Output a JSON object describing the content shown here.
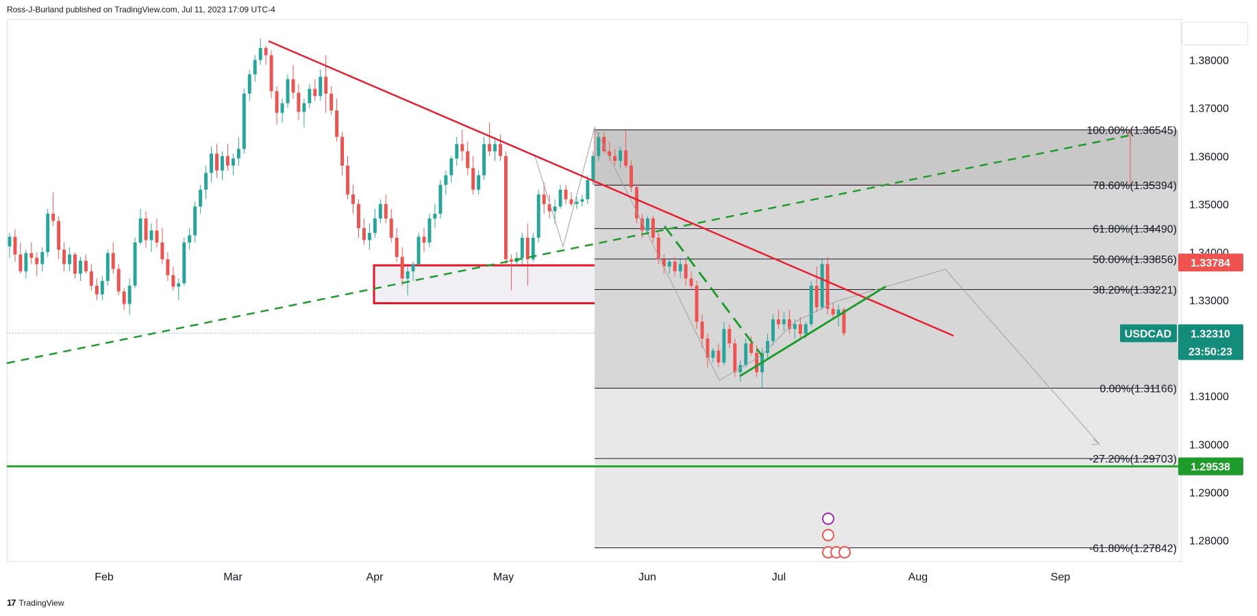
{
  "header": {
    "publisher": "Ross-J-Burland published on TradingView.com, Jul 11, 2023 17:09 UTC-4"
  },
  "footer": {
    "brand": "TradingView",
    "logo_text": "17"
  },
  "colors": {
    "up": "#26a69a",
    "down": "#ef5350",
    "trend_red": "#e81e2e",
    "trend_green": "#1e9b2a",
    "fib_zone": "#c9c9c9",
    "grid": "#e0e3eb"
  },
  "chart_data": {
    "type": "candlestick",
    "symbol": "USDCAD",
    "x_tick_labels": [
      "Feb",
      "Mar",
      "Apr",
      "May",
      "Jun",
      "Jul",
      "Aug",
      "Sep"
    ],
    "y_tick_labels": [
      "1.38000",
      "1.37000",
      "1.36000",
      "1.35000",
      "1.34000",
      "1.33000",
      "1.31000",
      "1.30000",
      "1.29000",
      "1.28000"
    ],
    "ylim": [
      1.2755,
      1.3885
    ],
    "price_tags": [
      {
        "name": "resistance",
        "value": "1.33784",
        "color": "#ef5350"
      },
      {
        "name": "symbol",
        "label": "USDCAD",
        "value": "1.32310",
        "countdown": "23:50:23",
        "color": "#138c7c"
      },
      {
        "name": "support",
        "value": "1.29538",
        "color": "#1e9b2a"
      }
    ],
    "fibonacci": [
      {
        "label": "100.00%(1.36545)",
        "price": 1.36545
      },
      {
        "label": "78.60%(1.35394)",
        "price": 1.35394
      },
      {
        "label": "61.80%(1.34490)",
        "price": 1.3449
      },
      {
        "label": "50.00%(1.33856)",
        "price": 1.33856
      },
      {
        "label": "38.20%(1.33221)",
        "price": 1.33221
      },
      {
        "label": "0.00%(1.31166)",
        "price": 1.31166
      },
      {
        "label": "-27.20%(1.29703)",
        "price": 1.29703
      },
      {
        "label": "-61.80%(1.27842)",
        "price": 1.27842
      }
    ],
    "support_line": 1.29538,
    "last_price": 1.3231,
    "candles": [
      [
        1.3412,
        1.344,
        1.3388,
        1.3432
      ],
      [
        1.3432,
        1.3448,
        1.338,
        1.3395
      ],
      [
        1.3395,
        1.342,
        1.3355,
        1.336
      ],
      [
        1.336,
        1.3405,
        1.3345,
        1.3398
      ],
      [
        1.3398,
        1.342,
        1.3375,
        1.3388
      ],
      [
        1.3388,
        1.34,
        1.335,
        1.3375
      ],
      [
        1.3375,
        1.341,
        1.336,
        1.34
      ],
      [
        1.34,
        1.349,
        1.339,
        1.348
      ],
      [
        1.348,
        1.3525,
        1.3455,
        1.3465
      ],
      [
        1.3465,
        1.3475,
        1.3385,
        1.3405
      ],
      [
        1.3405,
        1.342,
        1.336,
        1.3375
      ],
      [
        1.3375,
        1.341,
        1.336,
        1.3395
      ],
      [
        1.3395,
        1.34,
        1.3345,
        1.3355
      ],
      [
        1.3355,
        1.339,
        1.334,
        1.3382
      ],
      [
        1.3382,
        1.3395,
        1.3355,
        1.336
      ],
      [
        1.336,
        1.3375,
        1.332,
        1.333
      ],
      [
        1.333,
        1.3345,
        1.33,
        1.3312
      ],
      [
        1.3312,
        1.335,
        1.33,
        1.334
      ],
      [
        1.334,
        1.3405,
        1.333,
        1.3398
      ],
      [
        1.3398,
        1.342,
        1.3355,
        1.3365
      ],
      [
        1.3365,
        1.3375,
        1.331,
        1.3318
      ],
      [
        1.3318,
        1.3325,
        1.328,
        1.3292
      ],
      [
        1.3292,
        1.3345,
        1.327,
        1.333
      ],
      [
        1.333,
        1.343,
        1.3325,
        1.342
      ],
      [
        1.342,
        1.349,
        1.3415,
        1.347
      ],
      [
        1.347,
        1.3485,
        1.341,
        1.3425
      ],
      [
        1.3425,
        1.346,
        1.34,
        1.3445
      ],
      [
        1.3445,
        1.347,
        1.341,
        1.342
      ],
      [
        1.342,
        1.345,
        1.3375,
        1.3385
      ],
      [
        1.3385,
        1.34,
        1.334,
        1.3352
      ],
      [
        1.3352,
        1.337,
        1.332,
        1.3328
      ],
      [
        1.3328,
        1.3345,
        1.33,
        1.3335
      ],
      [
        1.3335,
        1.343,
        1.333,
        1.342
      ],
      [
        1.342,
        1.345,
        1.3405,
        1.3435
      ],
      [
        1.3435,
        1.3505,
        1.342,
        1.3495
      ],
      [
        1.3495,
        1.354,
        1.348,
        1.353
      ],
      [
        1.353,
        1.358,
        1.351,
        1.3565
      ],
      [
        1.3565,
        1.362,
        1.3545,
        1.3605
      ],
      [
        1.3605,
        1.3625,
        1.3555,
        1.357
      ],
      [
        1.357,
        1.361,
        1.355,
        1.36
      ],
      [
        1.36,
        1.3625,
        1.357,
        1.358
      ],
      [
        1.358,
        1.3605,
        1.356,
        1.3595
      ],
      [
        1.3595,
        1.364,
        1.358,
        1.3615
      ],
      [
        1.3615,
        1.374,
        1.3605,
        1.373
      ],
      [
        1.373,
        1.378,
        1.3715,
        1.377
      ],
      [
        1.377,
        1.381,
        1.3755,
        1.38
      ],
      [
        1.38,
        1.3845,
        1.379,
        1.3825
      ],
      [
        1.3825,
        1.383,
        1.379,
        1.381
      ],
      [
        1.381,
        1.382,
        1.372,
        1.3735
      ],
      [
        1.3735,
        1.3745,
        1.3665,
        1.369
      ],
      [
        1.369,
        1.372,
        1.367,
        1.371
      ],
      [
        1.371,
        1.377,
        1.37,
        1.376
      ],
      [
        1.376,
        1.379,
        1.372,
        1.3732
      ],
      [
        1.3732,
        1.375,
        1.3675,
        1.3692
      ],
      [
        1.3692,
        1.372,
        1.366,
        1.371
      ],
      [
        1.371,
        1.375,
        1.37,
        1.374
      ],
      [
        1.374,
        1.376,
        1.3715,
        1.3725
      ],
      [
        1.3725,
        1.378,
        1.3715,
        1.3765
      ],
      [
        1.3765,
        1.381,
        1.369,
        1.373
      ],
      [
        1.373,
        1.3745,
        1.3685,
        1.3695
      ],
      [
        1.3695,
        1.372,
        1.363,
        1.364
      ],
      [
        1.364,
        1.365,
        1.356,
        1.358
      ],
      [
        1.358,
        1.36,
        1.351,
        1.352
      ],
      [
        1.352,
        1.354,
        1.348,
        1.35
      ],
      [
        1.35,
        1.351,
        1.343,
        1.345
      ],
      [
        1.345,
        1.347,
        1.3415,
        1.3425
      ],
      [
        1.3425,
        1.346,
        1.3405,
        1.344
      ],
      [
        1.344,
        1.349,
        1.343,
        1.347
      ],
      [
        1.347,
        1.351,
        1.346,
        1.35
      ],
      [
        1.35,
        1.352,
        1.346,
        1.347
      ],
      [
        1.347,
        1.349,
        1.342,
        1.343
      ],
      [
        1.343,
        1.345,
        1.338,
        1.339
      ],
      [
        1.339,
        1.341,
        1.333,
        1.3345
      ],
      [
        1.3345,
        1.337,
        1.331,
        1.336
      ],
      [
        1.336,
        1.338,
        1.334,
        1.3375
      ],
      [
        1.3375,
        1.344,
        1.337,
        1.3432
      ],
      [
        1.3432,
        1.345,
        1.34,
        1.342
      ],
      [
        1.342,
        1.348,
        1.341,
        1.347
      ],
      [
        1.347,
        1.35,
        1.345,
        1.348
      ],
      [
        1.348,
        1.355,
        1.347,
        1.354
      ],
      [
        1.354,
        1.357,
        1.352,
        1.356
      ],
      [
        1.356,
        1.36,
        1.3545,
        1.3595
      ],
      [
        1.3595,
        1.364,
        1.358,
        1.3625
      ],
      [
        1.3625,
        1.3655,
        1.359,
        1.361
      ],
      [
        1.361,
        1.363,
        1.356,
        1.3575
      ],
      [
        1.3575,
        1.36,
        1.352,
        1.353
      ],
      [
        1.353,
        1.357,
        1.352,
        1.356
      ],
      [
        1.356,
        1.364,
        1.355,
        1.3625
      ],
      [
        1.3625,
        1.367,
        1.36,
        1.361
      ],
      [
        1.361,
        1.364,
        1.359,
        1.3625
      ],
      [
        1.3625,
        1.3645,
        1.359,
        1.36
      ],
      [
        1.36,
        1.361,
        1.337,
        1.3385
      ],
      [
        1.3385,
        1.3395,
        1.332,
        1.338
      ],
      [
        1.338,
        1.34,
        1.337,
        1.3388
      ],
      [
        1.3388,
        1.344,
        1.3375,
        1.343
      ],
      [
        1.343,
        1.346,
        1.333,
        1.3385
      ],
      [
        1.3385,
        1.344,
        1.338,
        1.343
      ],
      [
        1.343,
        1.353,
        1.342,
        1.352
      ],
      [
        1.352,
        1.3545,
        1.348,
        1.35
      ],
      [
        1.35,
        1.352,
        1.347,
        1.3485
      ],
      [
        1.3485,
        1.351,
        1.346,
        1.3495
      ],
      [
        1.3495,
        1.354,
        1.349,
        1.353
      ],
      [
        1.353,
        1.354,
        1.35,
        1.351
      ],
      [
        1.351,
        1.3525,
        1.3495,
        1.35
      ],
      [
        1.35,
        1.3515,
        1.349,
        1.3505
      ],
      [
        1.3505,
        1.352,
        1.3495,
        1.351
      ],
      [
        1.351,
        1.356,
        1.35,
        1.355
      ],
      [
        1.355,
        1.361,
        1.354,
        1.36
      ],
      [
        1.36,
        1.365,
        1.359,
        1.364
      ],
      [
        1.364,
        1.365,
        1.3605,
        1.361
      ],
      [
        1.361,
        1.363,
        1.359,
        1.36
      ],
      [
        1.36,
        1.3615,
        1.358,
        1.359
      ],
      [
        1.359,
        1.362,
        1.3575,
        1.3612
      ],
      [
        1.3612,
        1.3654,
        1.3575,
        1.358
      ],
      [
        1.358,
        1.359,
        1.3525,
        1.3535
      ],
      [
        1.3535,
        1.354,
        1.346,
        1.347
      ],
      [
        1.347,
        1.348,
        1.343,
        1.3445
      ],
      [
        1.3445,
        1.3475,
        1.344,
        1.347
      ],
      [
        1.347,
        1.3475,
        1.342,
        1.343
      ],
      [
        1.343,
        1.344,
        1.3375,
        1.3385
      ],
      [
        1.3385,
        1.3395,
        1.3355,
        1.337
      ],
      [
        1.337,
        1.3385,
        1.3355,
        1.338
      ],
      [
        1.338,
        1.339,
        1.335,
        1.336
      ],
      [
        1.336,
        1.3385,
        1.3345,
        1.3375
      ],
      [
        1.3375,
        1.3385,
        1.333,
        1.3345
      ],
      [
        1.3345,
        1.336,
        1.332,
        1.333
      ],
      [
        1.333,
        1.334,
        1.324,
        1.3255
      ],
      [
        1.3255,
        1.327,
        1.32,
        1.322
      ],
      [
        1.322,
        1.323,
        1.316,
        1.318
      ],
      [
        1.318,
        1.32,
        1.317,
        1.3195
      ],
      [
        1.3195,
        1.321,
        1.316,
        1.317
      ],
      [
        1.317,
        1.3255,
        1.3165,
        1.324
      ],
      [
        1.324,
        1.325,
        1.32,
        1.321
      ],
      [
        1.321,
        1.322,
        1.314,
        1.315
      ],
      [
        1.315,
        1.3175,
        1.313,
        1.3165
      ],
      [
        1.3165,
        1.322,
        1.316,
        1.321
      ],
      [
        1.321,
        1.3225,
        1.3185,
        1.319
      ],
      [
        1.319,
        1.3205,
        1.314,
        1.315
      ],
      [
        1.315,
        1.32,
        1.3117,
        1.319
      ],
      [
        1.319,
        1.323,
        1.318,
        1.3215
      ],
      [
        1.3215,
        1.327,
        1.3205,
        1.326
      ],
      [
        1.326,
        1.328,
        1.324,
        1.325
      ],
      [
        1.325,
        1.3275,
        1.3235,
        1.326
      ],
      [
        1.326,
        1.328,
        1.323,
        1.324
      ],
      [
        1.324,
        1.326,
        1.322,
        1.325
      ],
      [
        1.325,
        1.3265,
        1.322,
        1.323
      ],
      [
        1.323,
        1.3255,
        1.322,
        1.325
      ],
      [
        1.325,
        1.334,
        1.3245,
        1.333
      ],
      [
        1.333,
        1.337,
        1.3275,
        1.3285
      ],
      [
        1.3285,
        1.3385,
        1.328,
        1.3375
      ],
      [
        1.3375,
        1.339,
        1.327,
        1.3282
      ],
      [
        1.3282,
        1.3295,
        1.326,
        1.327
      ],
      [
        1.327,
        1.329,
        1.3245,
        1.328
      ],
      [
        1.328,
        1.3285,
        1.3225,
        1.3231
      ]
    ]
  }
}
